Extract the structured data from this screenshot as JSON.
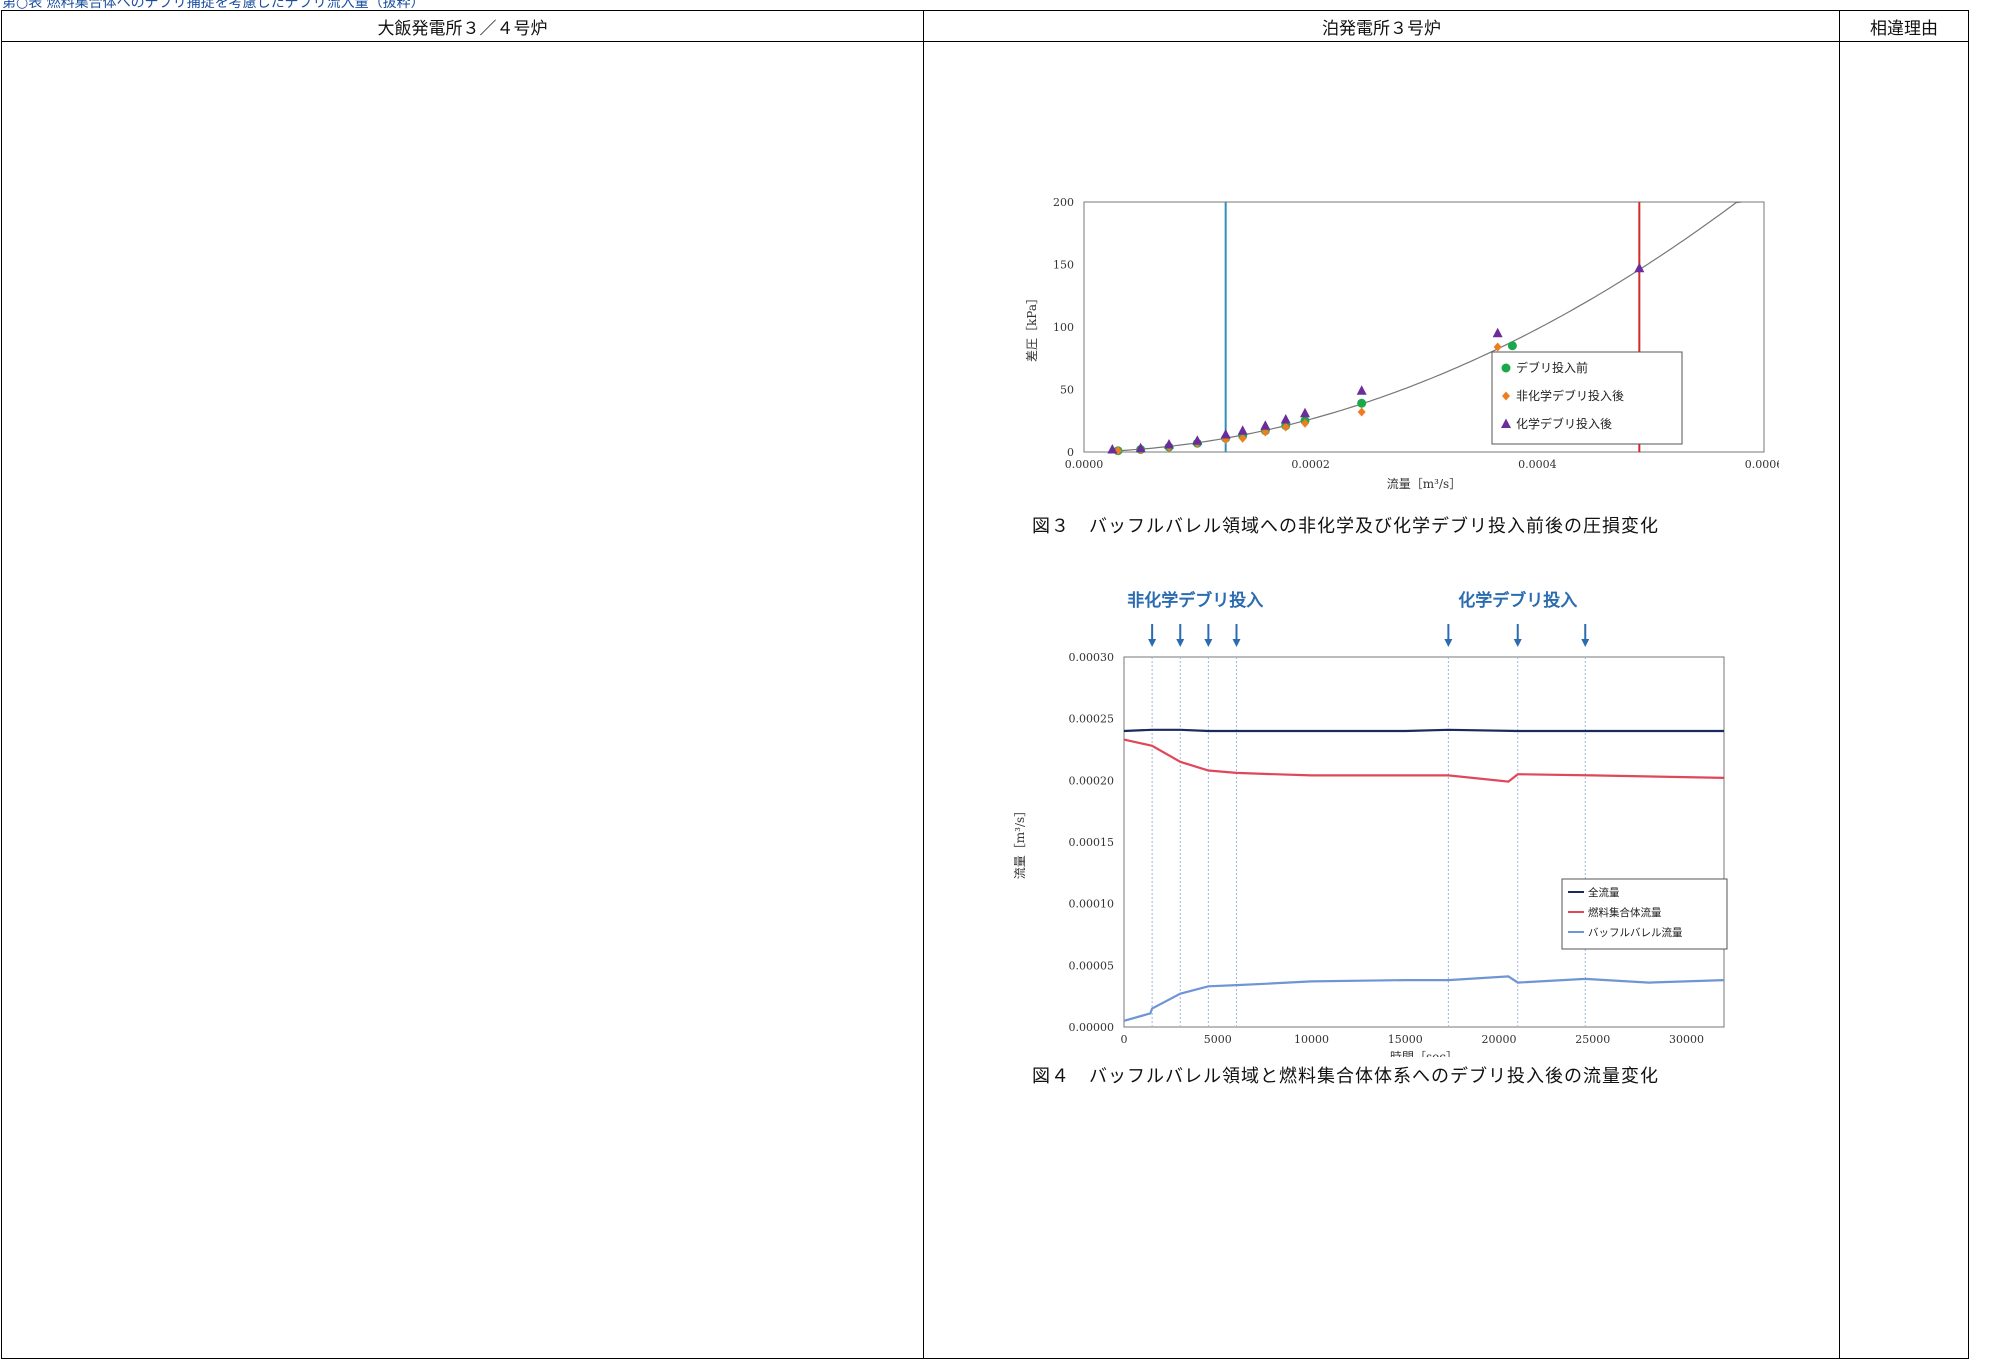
{
  "header_fragment": "第○表 燃料集合体へのデブリ捕捉を考慮したデブリ流入量（抜粋）",
  "table": {
    "col1": "大飯発電所３／４号炉",
    "col2": "泊発電所３号炉",
    "col3": "相違理由"
  },
  "figure3": {
    "caption": "図３　バッフルバレル領域への非化学及び化学デブリ投入前後の圧損変化",
    "xlabel": "流量［m³/s］",
    "ylabel": "差圧［kPa］",
    "legend": [
      "デブリ投入前",
      "非化学デブリ投入後",
      "化学デブリ投入後"
    ],
    "colors": {
      "green": "#1aa84a",
      "orange": "#ee7d22",
      "purple": "#6b2d9b",
      "blue_line": "#2f8fb8",
      "red_line": "#d42a2a",
      "curve": "#777777"
    }
  },
  "figure4": {
    "caption": "図４　バッフルバレル領域と燃料集合体体系へのデブリ投入後の流量変化",
    "xlabel": "時間［sec］",
    "ylabel": "流量［m³/s］",
    "annot_left": "非化学デブリ投入",
    "annot_right": "化学デブリ投入",
    "legend": [
      "全流量",
      "燃料集合体流量",
      "バッフルバレル流量"
    ],
    "colors": {
      "total": "#1b2a5e",
      "fuel": "#e0475a",
      "baffle": "#6f95d6",
      "annot": "#2b6cb0"
    }
  },
  "chart_data": [
    {
      "type": "scatter",
      "xlim": [
        0,
        0.0006
      ],
      "ylim": [
        0,
        200
      ],
      "x_ticks": [
        "0.0000",
        "0.0002",
        "0.0004",
        "0.0006"
      ],
      "y_ticks": [
        "0",
        "50",
        "100",
        "150",
        "200"
      ],
      "legend_position": "right",
      "vertical_lines": [
        {
          "x": 0.000125,
          "color": "blue"
        },
        {
          "x": 0.00049,
          "color": "red"
        }
      ],
      "fit_curve": {
        "form": "y = a*x^2 + b*x",
        "a": 574000000,
        "b": 16500
      },
      "series": [
        {
          "name": "デブリ投入前",
          "marker": "circle",
          "x": [
            3e-05,
            5e-05,
            7.5e-05,
            0.0001,
            0.000125,
            0.00014,
            0.00016,
            0.000178,
            0.000195,
            0.000245,
            0.000378
          ],
          "y": [
            1,
            2,
            4,
            7,
            11,
            13,
            17,
            21,
            25,
            39,
            85
          ]
        },
        {
          "name": "非化学デブリ投入後",
          "marker": "diamond",
          "x": [
            3e-05,
            5e-05,
            7.5e-05,
            0.0001,
            0.000125,
            0.00014,
            0.00016,
            0.000178,
            0.000195,
            0.000245,
            0.000365
          ],
          "y": [
            1,
            2,
            4,
            7,
            10,
            11,
            16,
            20,
            23,
            32,
            84
          ]
        },
        {
          "name": "化学デブリ投入後",
          "marker": "triangle",
          "x": [
            2.5e-05,
            5e-05,
            7.5e-05,
            0.0001,
            0.000125,
            0.00014,
            0.00016,
            0.000178,
            0.000195,
            0.000245,
            0.000365,
            0.00049
          ],
          "y": [
            2,
            3,
            6,
            9,
            14,
            17,
            21,
            26,
            31,
            49,
            95,
            147
          ]
        }
      ]
    },
    {
      "type": "line",
      "xlim": [
        0,
        32000
      ],
      "ylim": [
        0,
        0.0003
      ],
      "x_ticks": [
        "0",
        "5000",
        "10000",
        "15000",
        "20000",
        "25000",
        "30000"
      ],
      "y_ticks": [
        "0.00000",
        "0.00005",
        "0.00010",
        "0.00015",
        "0.00020",
        "0.00025",
        "0.00030"
      ],
      "legend_position": "right",
      "injection_times": [
        1500,
        3000,
        4500,
        6000,
        17300,
        21000,
        24600
      ],
      "series": [
        {
          "name": "全流量",
          "x": [
            0,
            1500,
            3000,
            4500,
            6000,
            10000,
            15000,
            17300,
            21000,
            25000,
            32000
          ],
          "y": [
            0.00024,
            0.000241,
            0.000241,
            0.00024,
            0.00024,
            0.00024,
            0.00024,
            0.000241,
            0.00024,
            0.00024,
            0.00024
          ]
        },
        {
          "name": "燃料集合体流量",
          "x": [
            0,
            1500,
            3000,
            4500,
            6000,
            8000,
            10000,
            15000,
            17300,
            20500,
            21000,
            25000,
            32000
          ],
          "y": [
            0.000233,
            0.000228,
            0.000215,
            0.000208,
            0.000206,
            0.000205,
            0.000204,
            0.000204,
            0.000204,
            0.000199,
            0.000205,
            0.000204,
            0.000202
          ]
        },
        {
          "name": "バッフルバレル流量",
          "x": [
            0,
            1400,
            1500,
            3000,
            4500,
            6000,
            7500,
            10000,
            15000,
            17300,
            20500,
            21000,
            24600,
            28000,
            32000
          ],
          "y": [
            5e-06,
            1.1e-05,
            1.5e-05,
            2.7e-05,
            3.3e-05,
            3.4e-05,
            3.5e-05,
            3.7e-05,
            3.8e-05,
            3.8e-05,
            4.1e-05,
            3.6e-05,
            3.9e-05,
            3.6e-05,
            3.8e-05
          ]
        }
      ]
    }
  ]
}
